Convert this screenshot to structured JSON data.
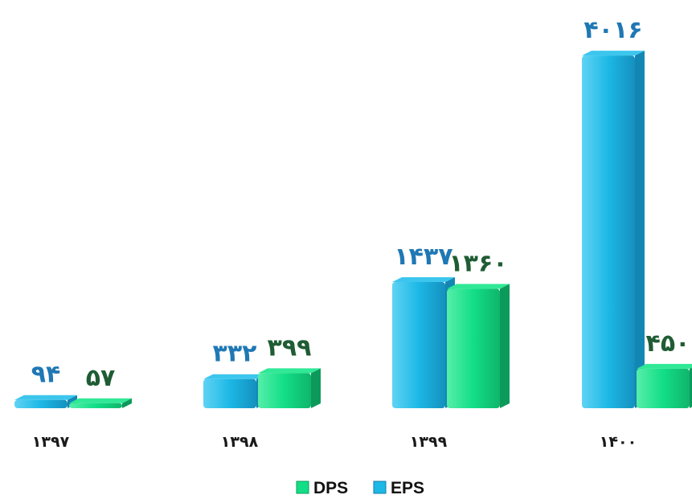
{
  "chart_data": {
    "type": "bar",
    "categories": [
      "۱۳۹۷",
      "۱۳۹۸",
      "۱۳۹۹",
      "۱۴۰۰"
    ],
    "series": [
      {
        "name": "EPS",
        "values": [
          94,
          332,
          1437,
          4016
        ],
        "labels": [
          "۹۴",
          "۳۳۲",
          "۱۴۳۷",
          "۴۰۱۶"
        ],
        "color": "#1cb8e6",
        "label_color": "#1f78b4"
      },
      {
        "name": "DPS",
        "values": [
          57,
          399,
          1360,
          450
        ],
        "labels": [
          "۵۷",
          "۳۹۹",
          "۱۳۶۰",
          "۴۵۰"
        ],
        "color": "#12de86",
        "label_color": "#1f5c34"
      }
    ],
    "legend": {
      "placement": "bottom",
      "order": [
        "DPS",
        "EPS"
      ]
    },
    "ylim": [
      0,
      4100
    ],
    "grid": false,
    "axes_visible": false
  }
}
